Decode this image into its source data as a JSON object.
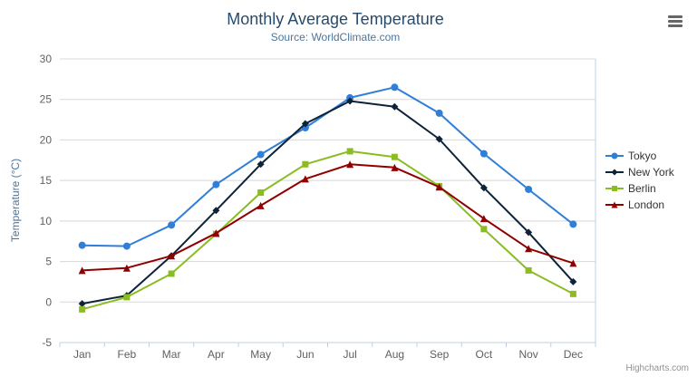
{
  "chart_data": {
    "type": "line",
    "title": "Monthly Average Temperature",
    "subtitle": "Source: WorldClimate.com",
    "xlabel": "",
    "ylabel": "Temperature (°C)",
    "categories": [
      "Jan",
      "Feb",
      "Mar",
      "Apr",
      "May",
      "Jun",
      "Jul",
      "Aug",
      "Sep",
      "Oct",
      "Nov",
      "Dec"
    ],
    "ylim": [
      -5,
      30
    ],
    "ytick_step": 5,
    "grid": true,
    "legend_position": "right",
    "series": [
      {
        "name": "Tokyo",
        "color": "#2f7ed8",
        "marker": "circle",
        "values": [
          7.0,
          6.9,
          9.5,
          14.5,
          18.2,
          21.5,
          25.2,
          26.5,
          23.3,
          18.3,
          13.9,
          9.6
        ]
      },
      {
        "name": "New York",
        "color": "#0d233a",
        "marker": "diamond",
        "values": [
          -0.2,
          0.8,
          5.7,
          11.3,
          17.0,
          22.0,
          24.8,
          24.1,
          20.1,
          14.1,
          8.6,
          2.5
        ]
      },
      {
        "name": "Berlin",
        "color": "#8bbc21",
        "marker": "square",
        "values": [
          -0.9,
          0.6,
          3.5,
          8.4,
          13.5,
          17.0,
          18.6,
          17.9,
          14.3,
          9.0,
          3.9,
          1.0
        ]
      },
      {
        "name": "London",
        "color": "#910000",
        "marker": "triangle",
        "values": [
          3.9,
          4.2,
          5.7,
          8.5,
          11.9,
          15.2,
          17.0,
          16.6,
          14.2,
          10.3,
          6.6,
          4.8
        ]
      }
    ],
    "styles": {
      "title_color": "#274b6d",
      "subtitle_color": "#4d759e",
      "axis_title_color": "#4d759e",
      "axis_label_color": "#606060",
      "gridline_color": "#d8d8d8",
      "axis_line_color": "#c0d0e0",
      "legend_text_color": "#333333"
    }
  },
  "credits": {
    "label": "Highcharts.com"
  },
  "icons": {
    "export_menu": "hamburger-icon"
  }
}
